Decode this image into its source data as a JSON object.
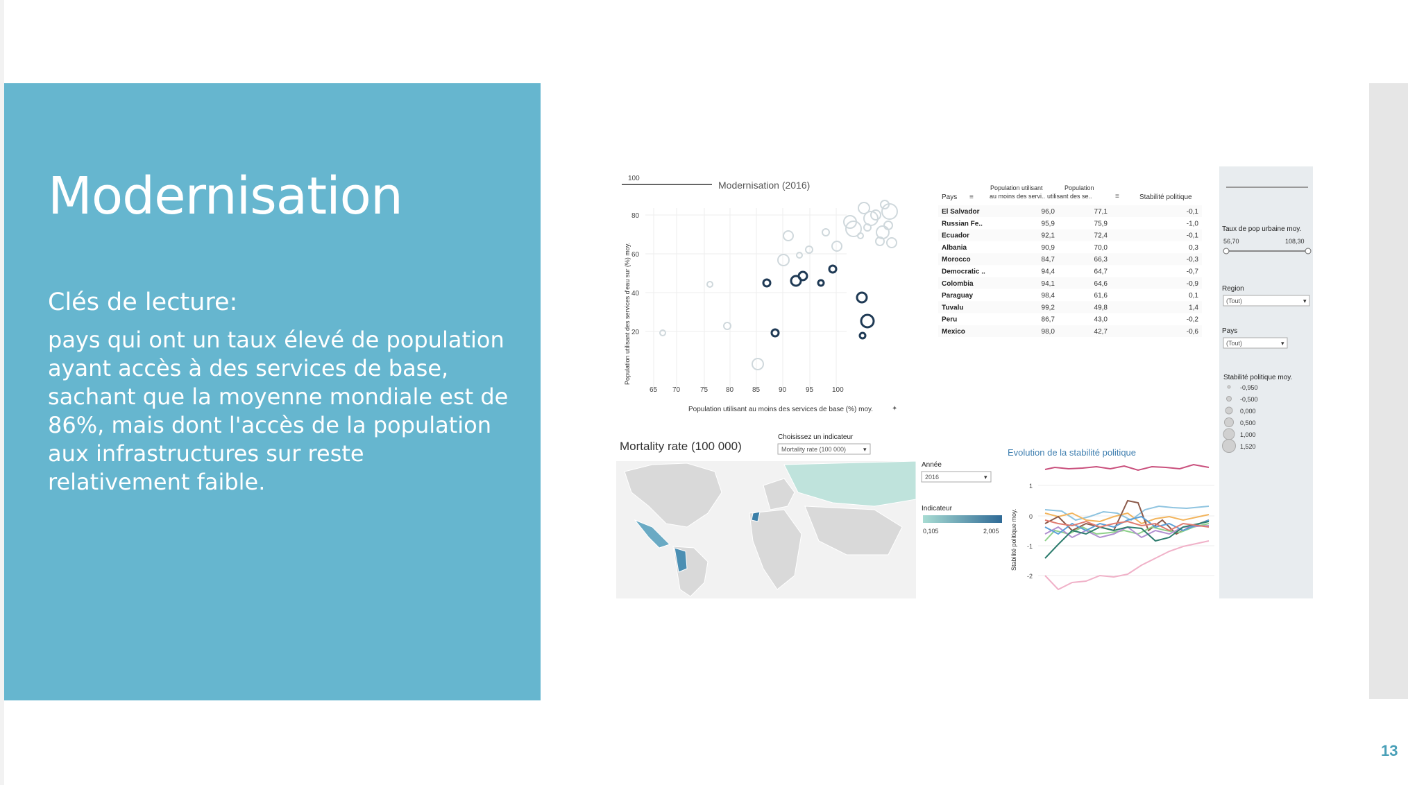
{
  "slide": {
    "title": "Modernisation",
    "keys_label": "Clés de lecture:",
    "body": "pays qui ont un taux élevé de population ayant accès à des services de base, sachant que la moyenne mondiale est de 86%, mais dont l'accès de la population aux infrastructures sur reste relativement faible.",
    "page_number": "13"
  },
  "colors": {
    "panel": "#66b6cf",
    "accent": "#1f3a55",
    "map_fill": "#d9d9d9",
    "map_high": "#3b7fa8"
  },
  "scatter": {
    "title": "Modernisation (2016)",
    "xlabel": "Population utilisant au moins des services de base (%) moy.",
    "ylabel": "Population utilisant des services d'eau sur (%) moy.",
    "xticks": [
      "65",
      "70",
      "75",
      "80",
      "85",
      "90",
      "95",
      "100"
    ],
    "yticks": [
      "100",
      "80",
      "60",
      "40",
      "20"
    ]
  },
  "table": {
    "headers": [
      "Pays",
      "Population utilisant au moins des servi..",
      "Population utilisant des se..",
      "Stabilité politique"
    ],
    "rows": [
      [
        "El Salvador",
        "96,0",
        "77,1",
        "-0,1"
      ],
      [
        "Russian Fe..",
        "95,9",
        "75,9",
        "-1,0"
      ],
      [
        "Ecuador",
        "92,1",
        "72,4",
        "-0,1"
      ],
      [
        "Albania",
        "90,9",
        "70,0",
        "0,3"
      ],
      [
        "Morocco",
        "84,7",
        "66,3",
        "-0,3"
      ],
      [
        "Democratic ..",
        "94,4",
        "64,7",
        "-0,7"
      ],
      [
        "Colombia",
        "94,1",
        "64,6",
        "-0,9"
      ],
      [
        "Paraguay",
        "98,4",
        "61,6",
        "0,1"
      ],
      [
        "Tuvalu",
        "99,2",
        "49,8",
        "1,4"
      ],
      [
        "Peru",
        "86,7",
        "43,0",
        "-0,2"
      ],
      [
        "Mexico",
        "98,0",
        "42,7",
        "-0,6"
      ]
    ]
  },
  "filters": {
    "urban_label": "Taux de pop urbaine moy.",
    "urban_min": "56,70",
    "urban_max": "108,30",
    "region_label": "Region",
    "region_value": "(Tout)",
    "pays_label": "Pays",
    "pays_value": "(Tout)",
    "stab_label": "Stabilité politique moy.",
    "stab_values": [
      "-0,950",
      "-0,500",
      "0,000",
      "0,500",
      "1,000",
      "1,520"
    ]
  },
  "map": {
    "title": "Mortality rate (100 000)",
    "indicator_label": "Choisissez un indicateur",
    "indicator_value": "Mortality rate (100 000)",
    "year_label": "Année",
    "year_value": "2016",
    "legend_label": "Indicateur",
    "legend_min": "0,105",
    "legend_max": "2,005"
  },
  "line_chart": {
    "title": "Evolution de la stabilité politique",
    "ylabel": "Stabilité politique moy.",
    "yticks": [
      "1",
      "0",
      "-1",
      "-2"
    ]
  }
}
